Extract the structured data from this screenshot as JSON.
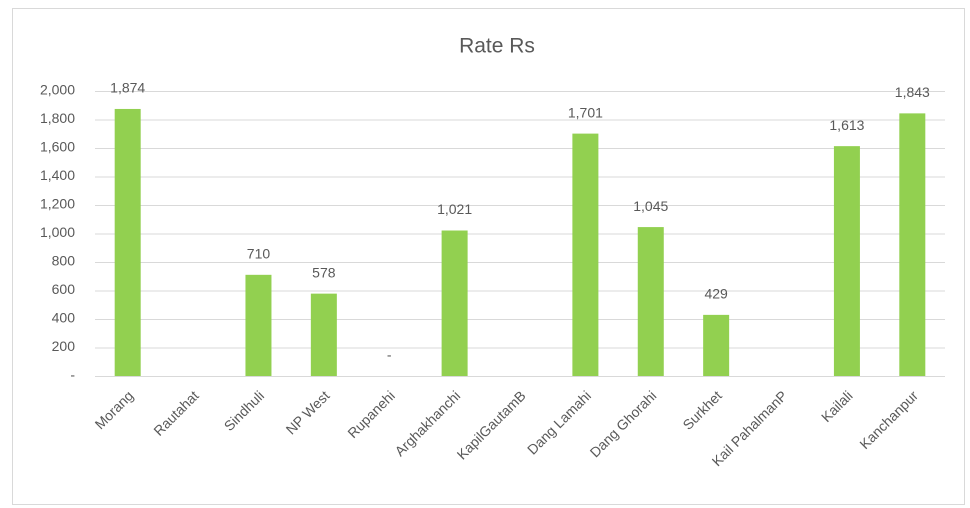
{
  "chart_data": {
    "type": "bar",
    "title": "Rate Rs",
    "categories": [
      "Morang",
      "Rautahat",
      "Sindhuli",
      "NP West",
      "Rupanehi",
      "Arghakhanchi",
      "KapilGautamB",
      "Dang Lamahi",
      "Dang Ghorahi",
      "Surkhet",
      "Kail PahalmanP",
      "Kailali",
      "Kanchanpur"
    ],
    "values": [
      1874,
      null,
      710,
      578,
      0,
      1021,
      null,
      1701,
      1045,
      429,
      null,
      1613,
      1843
    ],
    "value_labels": [
      "1,874",
      null,
      "710",
      "578",
      "-",
      "1,021",
      null,
      "1,701",
      "1,045",
      "429",
      null,
      "1,613",
      "1,843"
    ],
    "color": "#92d050",
    "ylim": [
      0,
      2000
    ],
    "yticks": [
      {
        "value": 0,
        "label": "-"
      },
      200,
      400,
      600,
      800,
      {
        "value": 1000,
        "label": "1,000"
      },
      {
        "value": 1200,
        "label": "1,200"
      },
      {
        "value": 1400,
        "label": "1,400"
      },
      {
        "value": 1600,
        "label": "1,600"
      },
      {
        "value": 1800,
        "label": "1,800"
      },
      {
        "value": 2000,
        "label": "2,000"
      }
    ],
    "grid": true
  }
}
